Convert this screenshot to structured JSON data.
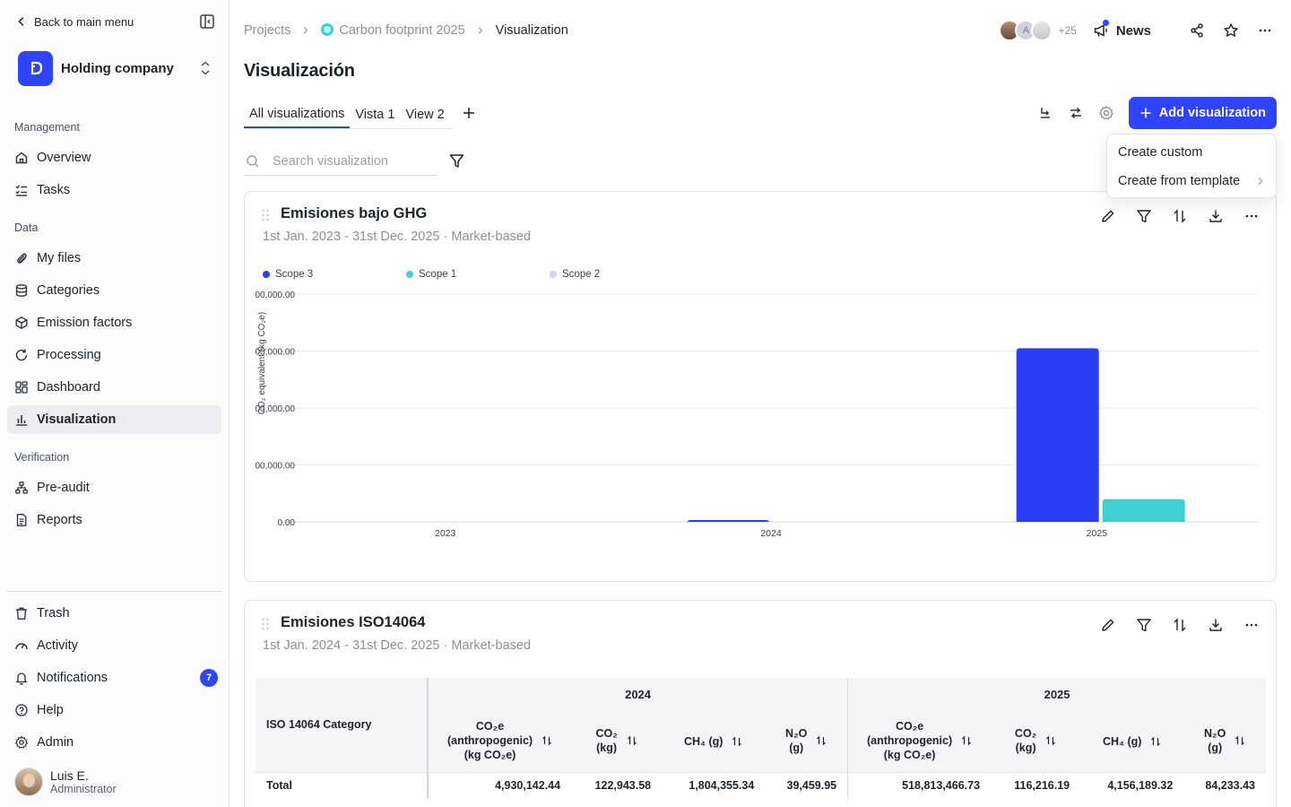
{
  "sidebar": {
    "back_label": "Back to main menu",
    "org_name": "Holding company",
    "sections": {
      "management": "Management",
      "data": "Data",
      "verification": "Verification"
    },
    "items": {
      "overview": "Overview",
      "tasks": "Tasks",
      "my_files": "My files",
      "categories": "Categories",
      "emission_factors": "Emission factors",
      "processing": "Processing",
      "dashboard": "Dashboard",
      "visualization": "Visualization",
      "pre_audit": "Pre-audit",
      "reports": "Reports",
      "trash": "Trash",
      "activity": "Activity",
      "notifications": "Notifications",
      "help": "Help",
      "admin": "Admin"
    },
    "notifications_count": "7",
    "user": {
      "name": "Luis E.",
      "role": "Administrator"
    }
  },
  "header": {
    "breadcrumb": [
      "Projects",
      "Carbon footprint 2025",
      "Visualization"
    ],
    "avatar_initial": "A",
    "more_collaborators": "+25",
    "news_label": "News"
  },
  "page": {
    "title": "Visualización",
    "tabs": [
      "All visualizations",
      "Vista 1",
      "View 2"
    ],
    "add_visualization": "Add visualization",
    "search_placeholder": "Search visualization",
    "dropdown": [
      "Create custom",
      "Create from template"
    ]
  },
  "card1": {
    "title": "Emisiones bajo GHG",
    "subtitle": "1st Jan. 2023 - 31st Dec. 2025 · Market-based"
  },
  "chart_data": {
    "type": "bar",
    "categories": [
      "2023",
      "2024",
      "2025"
    ],
    "ylabel": "CO₂ equivalent (kg CO₂e)",
    "y_tick_labels": [
      "0.00",
      "00,000.00",
      "00,000.00",
      "00,000.00",
      "00,000.00"
    ],
    "ylim": [
      0,
      800000
    ],
    "legend_placement": "top-left",
    "series": [
      {
        "name": "Scope 3",
        "color": "#2a3ff5",
        "values": [
          0,
          5000,
          610000
        ]
      },
      {
        "name": "Scope 1",
        "color": "#3fd0d2",
        "values": [
          0,
          0,
          80000
        ]
      },
      {
        "name": "Scope 2",
        "color": "#cfd3f5",
        "values": [
          0,
          0,
          0
        ]
      }
    ],
    "grid": true
  },
  "card2": {
    "title": "Emisiones ISO14064",
    "subtitle": "1st Jan. 2024 - 31st Dec. 2025 · Market-based",
    "table": {
      "category_header": "ISO 14064 Category",
      "years": [
        "2024",
        "2025"
      ],
      "columns": [
        [
          "CO₂e",
          "(anthropogenic)",
          "(kg CO₂e)"
        ],
        [
          "CO₂",
          "(kg)"
        ],
        [
          "CH₄ (g)"
        ],
        [
          "N₂O",
          "(g)"
        ],
        [
          "CO₂e",
          "(anthropogenic)",
          "(kg CO₂e)"
        ],
        [
          "CO₂",
          "(kg)"
        ],
        [
          "CH₄ (g)"
        ],
        [
          "N₂O",
          "(g)"
        ]
      ],
      "rows": [
        {
          "label": "Total",
          "values": [
            "4,930,142.44",
            "122,943.58",
            "1,804,355.34",
            "39,459.95",
            "518,813,466.73",
            "116,216.19",
            "4,156,189.32",
            "84,233.43"
          ]
        }
      ]
    }
  },
  "colors": {
    "accent": "#2f44ff",
    "teal": "#3fd0d2"
  }
}
